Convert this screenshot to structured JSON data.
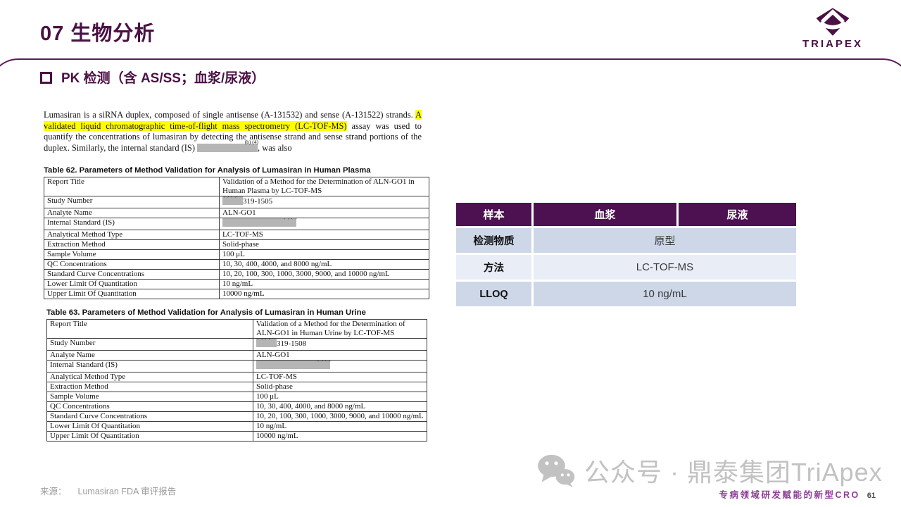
{
  "colors": {
    "brand_purple": "#4a1144",
    "table_header_purple": "#4d1152",
    "row_dark_blue": "#cdd7e8",
    "row_light_blue": "#e9edf6",
    "highlight_yellow": "#ffff00",
    "tagline_purple": "#8d3e96"
  },
  "header": {
    "title": "07 生物分析",
    "logo_text": "TRIAPEX"
  },
  "subtitle": "PK 检测（含 AS/SS；血浆/尿液）",
  "excerpt": {
    "pre": "Lumasiran is a siRNA duplex, composed of single antisense (A-131532) and sense (A-131522) strands. ",
    "highlight": "A validated liquid chromatographic time-of-flight mass spectrometry (LC-TOF-MS)",
    "post": " assay was used to quantify the concentrations of lumasiran by detecting the antisense strand and sense strand portions of the duplex. Similarly, the internal standard (IS) ",
    "redaction_label": "(b) (4)",
    "tail": ", was also"
  },
  "table62": {
    "title": "Table 62. Parameters of Method Validation for Analysis of Lumasiran in Human Plasma",
    "rows": [
      {
        "label": "Report Title",
        "value": "Validation of a Method for the Determination of ALN-GO1 in Human Plasma by LC-TOF-MS"
      },
      {
        "label": "Study Number",
        "value": "319-1505",
        "redact": "prefix",
        "redact_label": "(b) (4)"
      },
      {
        "label": "Analyte Name",
        "value": "ALN-GO1"
      },
      {
        "label": "Internal Standard (IS)",
        "value": "",
        "redact": "full",
        "redact_label": "(b) (4)"
      },
      {
        "label": "Analytical Method Type",
        "value": "LC-TOF-MS"
      },
      {
        "label": "Extraction Method",
        "value": "Solid-phase"
      },
      {
        "label": "Sample Volume",
        "value": "100 μL"
      },
      {
        "label": "QC Concentrations",
        "value": "10, 30, 400, 4000, and 8000 ng/mL"
      },
      {
        "label": "Standard Curve Concentrations",
        "value": "10, 20, 100, 300, 1000, 3000, 9000, and 10000 ng/mL"
      },
      {
        "label": "Lower Limit Of Quantitation",
        "value": "10 ng/mL"
      },
      {
        "label": "Upper Limit Of Quantitation",
        "value": "10000 ng/mL"
      }
    ]
  },
  "table63": {
    "title": "Table 63. Parameters of Method Validation for Analysis of Lumasiran in Human Urine",
    "rows": [
      {
        "label": "Report Title",
        "value": "Validation of a Method for the Determination of ALN-GO1 in Human Urine by LC-TOF-MS"
      },
      {
        "label": "Study Number",
        "value": "319-1508",
        "redact": "prefix",
        "redact_label": "(b) (4)"
      },
      {
        "label": "Analyte Name",
        "value": "ALN-GO1"
      },
      {
        "label": "Internal Standard (IS)",
        "value": "",
        "redact": "full",
        "redact_label": "(b) (4)"
      },
      {
        "label": "Analytical Method Type",
        "value": "LC-TOF-MS"
      },
      {
        "label": "Extraction Method",
        "value": "Solid-phase"
      },
      {
        "label": "Sample Volume",
        "value": "100 μL"
      },
      {
        "label": "QC Concentrations",
        "value": "10, 30, 400, 4000, and 8000 ng/mL"
      },
      {
        "label": "Standard Curve Concentrations",
        "value": "10, 20, 100, 300, 1000, 3000, 9000, and 10000 ng/mL"
      },
      {
        "label": "Lower Limit Of Quantitation",
        "value": "10 ng/mL"
      },
      {
        "label": "Upper Limit Of Quantitation",
        "value": "10000 ng/mL"
      }
    ]
  },
  "summary_table": {
    "headers": [
      "样本",
      "血浆",
      "尿液"
    ],
    "rows": [
      {
        "label": "检测物质",
        "value": "原型",
        "shade": "dark"
      },
      {
        "label": "方法",
        "value": "LC-TOF-MS",
        "shade": "light"
      },
      {
        "label": "LLOQ",
        "value": "10 ng/mL",
        "shade": "dark"
      }
    ]
  },
  "footer": {
    "source_label": "来源：",
    "source_text": "Lumasiran FDA 审评报告",
    "watermark_text": "公众号 · 鼎泰集团TriApex",
    "tagline": "专病领域研发赋能的新型CRO",
    "page_number": "61"
  }
}
